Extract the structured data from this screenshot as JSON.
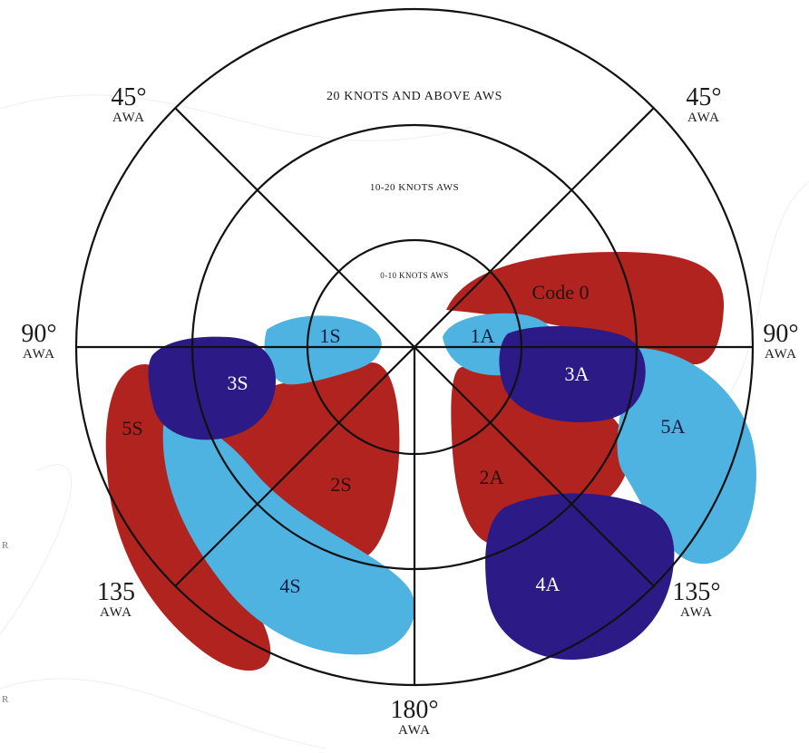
{
  "ring_labels": {
    "outer": "20 KNOTS AND ABOVE AWS",
    "middle": "10-20 KNOTS AWS",
    "inner": "0-10 KNOTS AWS"
  },
  "angle_labels": {
    "top_left": {
      "deg": "45°",
      "unit": "AWA"
    },
    "top_right": {
      "deg": "45°",
      "unit": "AWA"
    },
    "left": {
      "deg": "90°",
      "unit": "AWA"
    },
    "right": {
      "deg": "90°",
      "unit": "AWA"
    },
    "bottom_left": {
      "deg": "135",
      "unit": "AWA"
    },
    "bottom_right": {
      "deg": "135°",
      "unit": "AWA"
    },
    "bottom": {
      "deg": "180°",
      "unit": "AWA"
    }
  },
  "zones": {
    "code0": "Code 0",
    "s1": "1S",
    "s2": "2S",
    "s3": "3S",
    "s4": "4S",
    "s5": "5S",
    "a1": "1A",
    "a2": "2A",
    "a3": "3A",
    "a4": "4A",
    "a5": "5A"
  },
  "margin_marks": [
    "R",
    "R"
  ],
  "colors": {
    "red": "#b0231f",
    "navy": "#2c1a86",
    "light_blue": "#4eb3e1",
    "line": "#111111"
  }
}
